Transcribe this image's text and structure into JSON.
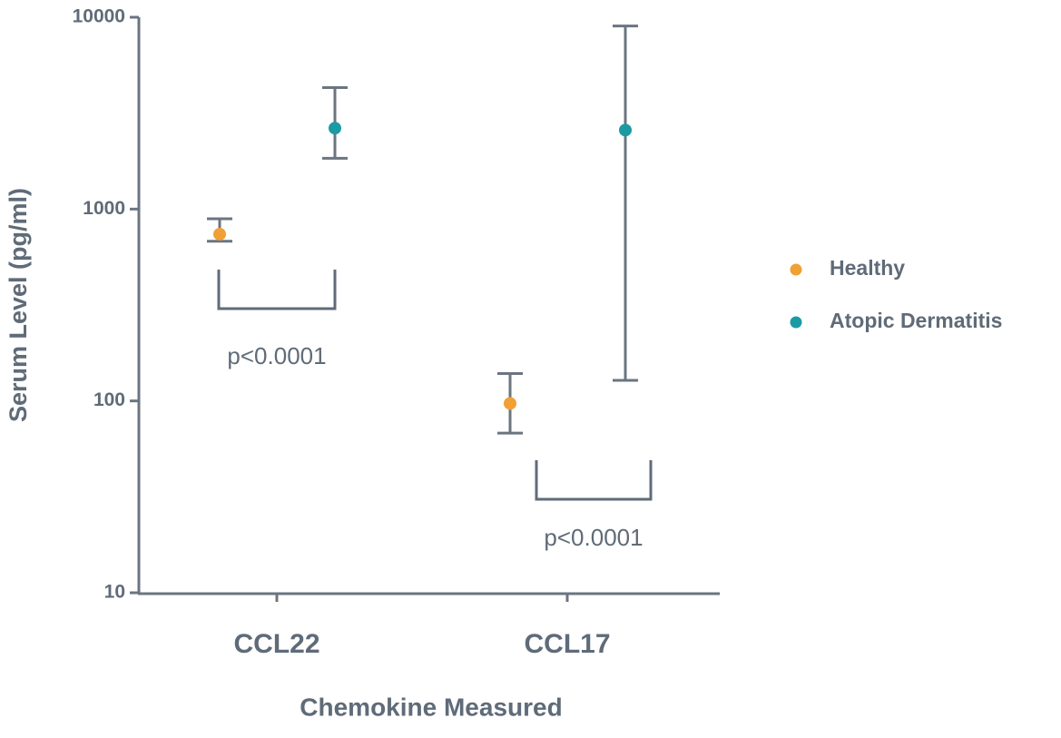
{
  "chart_data": {
    "type": "errorbar",
    "categories": [
      "CCL22",
      "CCL17"
    ],
    "x_label": "Chemokine Measured",
    "y_label": "Serum Level (pg/ml)",
    "log_y": true,
    "ylim": [
      10,
      10000
    ],
    "yticks": [
      10,
      100,
      1000,
      10000
    ],
    "series": [
      {
        "name": "Healthy",
        "color": "#f0a035",
        "values": [
          740,
          97
        ],
        "lower": [
          680,
          68
        ],
        "upper": [
          890,
          139
        ]
      },
      {
        "name": "Atopic Dermatitis",
        "color": "#1a9ba3",
        "values": [
          2640,
          2580
        ],
        "lower": [
          1840,
          128
        ],
        "upper": [
          4300,
          9000
        ]
      }
    ],
    "annotations": [
      "p<0.0001",
      "p<0.0001"
    ],
    "legend_position": "right"
  }
}
